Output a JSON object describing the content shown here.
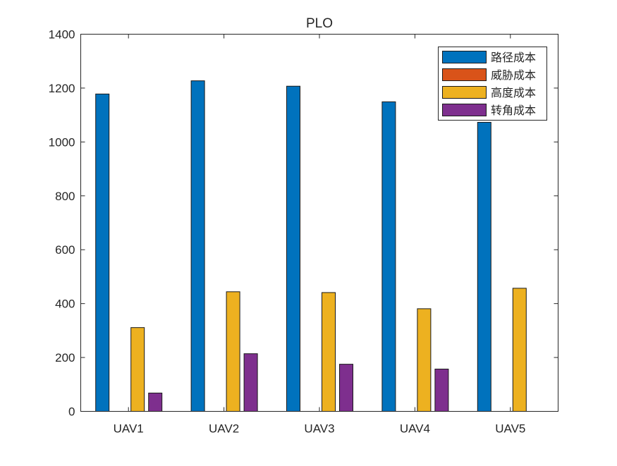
{
  "chart_data": {
    "type": "bar",
    "title": "PLO",
    "xlabel": "",
    "ylabel": "",
    "categories": [
      "UAV1",
      "UAV2",
      "UAV3",
      "UAV4",
      "UAV5"
    ],
    "ylim": [
      0,
      1400
    ],
    "yticks": [
      0,
      200,
      400,
      600,
      800,
      1000,
      1200,
      1400
    ],
    "grid": false,
    "legend_position": "top-right",
    "series": [
      {
        "name": "路径成本",
        "color": "#0072BD",
        "values": [
          1178,
          1227,
          1207,
          1149,
          1073
        ]
      },
      {
        "name": "威胁成本",
        "color": "#D95319",
        "values": [
          0,
          0,
          0,
          0,
          0
        ]
      },
      {
        "name": "高度成本",
        "color": "#EDB120",
        "values": [
          311,
          444,
          441,
          381,
          457
        ]
      },
      {
        "name": "转角成本",
        "color": "#7E2F8E",
        "values": [
          68,
          214,
          175,
          157,
          0
        ]
      }
    ]
  }
}
